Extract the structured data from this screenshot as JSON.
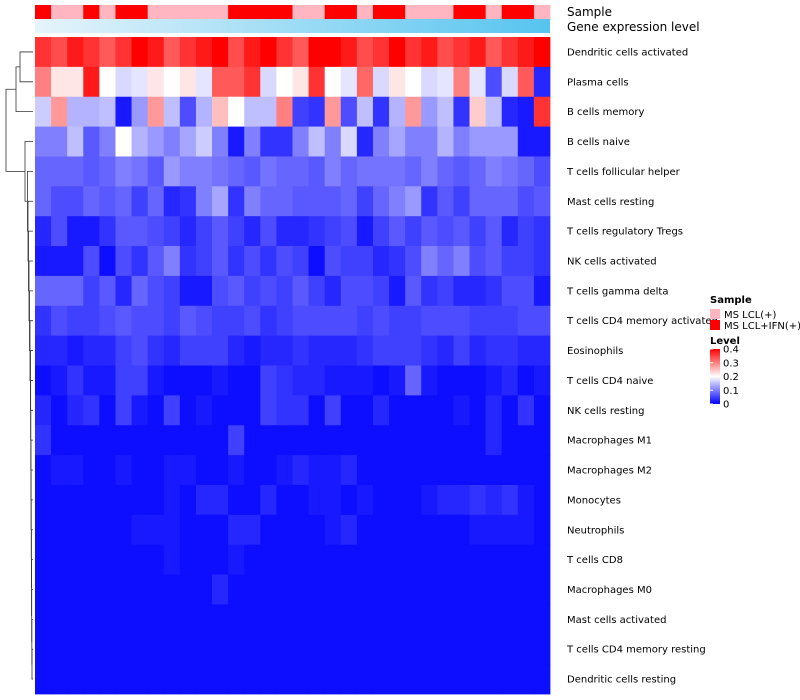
{
  "chart_data": {
    "type": "heatmap",
    "annotation_tracks": [
      "Sample",
      "Gene expression level"
    ],
    "rows": [
      "Dendritic cells activated",
      "Plasma cells",
      "B cells memory",
      "B cells naive",
      "T cells follicular helper",
      "Mast cells resting",
      "T cells regulatory  Tregs",
      "NK cells activated",
      "T cells gamma delta",
      "T cells CD4 memory activated",
      "Eosinophils",
      "T cells CD4 naive",
      "NK cells resting",
      "Macrophages M1",
      "Macrophages M2",
      "Monocytes",
      "Neutrophils",
      "T cells CD8",
      "Macrophages M0",
      "Mast cells activated",
      "T cells CD4 memory resting",
      "Dendritic cells resting"
    ],
    "sample_groups": [
      "MS LCL+IFN(+)",
      "MS LCL(+)",
      "MS LCL(+)",
      "MS LCL+IFN(+)",
      "MS LCL(+)",
      "MS LCL+IFN(+)",
      "MS LCL+IFN(+)",
      "MS LCL(+)",
      "MS LCL(+)",
      "MS LCL(+)",
      "MS LCL(+)",
      "MS LCL(+)",
      "MS LCL+IFN(+)",
      "MS LCL+IFN(+)",
      "MS LCL+IFN(+)",
      "MS LCL+IFN(+)",
      "MS LCL(+)",
      "MS LCL(+)",
      "MS LCL+IFN(+)",
      "MS LCL+IFN(+)",
      "MS LCL(+)",
      "MS LCL+IFN(+)",
      "MS LCL+IFN(+)",
      "MS LCL(+)",
      "MS LCL(+)",
      "MS LCL(+)",
      "MS LCL+IFN(+)",
      "MS LCL+IFN(+)",
      "MS LCL(+)",
      "MS LCL+IFN(+)",
      "MS LCL+IFN(+)",
      "MS LCL(+)"
    ],
    "values": [
      [
        0.36,
        0.34,
        0.38,
        0.36,
        0.33,
        0.36,
        0.4,
        0.38,
        0.33,
        0.36,
        0.38,
        0.4,
        0.34,
        0.38,
        0.4,
        0.36,
        0.33,
        0.4,
        0.4,
        0.38,
        0.34,
        0.36,
        0.4,
        0.36,
        0.38,
        0.34,
        0.36,
        0.38,
        0.33,
        0.36,
        0.38,
        0.4
      ],
      [
        0.3,
        0.22,
        0.22,
        0.38,
        0.2,
        0.17,
        0.18,
        0.22,
        0.2,
        0.22,
        0.18,
        0.33,
        0.33,
        0.36,
        0.17,
        0.2,
        0.22,
        0.36,
        0.2,
        0.18,
        0.32,
        0.17,
        0.22,
        0.2,
        0.17,
        0.18,
        0.3,
        0.18,
        0.06,
        0.17,
        0.33,
        0.03
      ],
      [
        0.16,
        0.28,
        0.14,
        0.14,
        0.15,
        0.02,
        0.12,
        0.28,
        0.15,
        0.06,
        0.14,
        0.25,
        0.2,
        0.15,
        0.15,
        0.3,
        0.05,
        0.04,
        0.28,
        0.06,
        0.15,
        0.04,
        0.14,
        0.28,
        0.12,
        0.15,
        0.04,
        0.24,
        0.15,
        0.03,
        0.02,
        0.36
      ],
      [
        0.1,
        0.1,
        0.15,
        0.07,
        0.1,
        0.2,
        0.14,
        0.12,
        0.1,
        0.13,
        0.16,
        0.1,
        0.02,
        0.1,
        0.04,
        0.04,
        0.1,
        0.15,
        0.1,
        0.17,
        0.03,
        0.1,
        0.13,
        0.1,
        0.1,
        0.14,
        0.1,
        0.12,
        0.12,
        0.12,
        0.02,
        0.02
      ],
      [
        0.08,
        0.08,
        0.08,
        0.07,
        0.08,
        0.1,
        0.09,
        0.07,
        0.12,
        0.1,
        0.1,
        0.09,
        0.08,
        0.07,
        0.09,
        0.08,
        0.08,
        0.07,
        0.1,
        0.08,
        0.09,
        0.09,
        0.09,
        0.08,
        0.1,
        0.08,
        0.07,
        0.08,
        0.1,
        0.09,
        0.08,
        0.06
      ],
      [
        0.08,
        0.06,
        0.06,
        0.08,
        0.07,
        0.08,
        0.05,
        0.08,
        0.03,
        0.04,
        0.1,
        0.13,
        0.04,
        0.1,
        0.08,
        0.08,
        0.07,
        0.07,
        0.07,
        0.08,
        0.05,
        0.08,
        0.1,
        0.12,
        0.04,
        0.07,
        0.05,
        0.08,
        0.08,
        0.08,
        0.06,
        0.07
      ],
      [
        0.03,
        0.06,
        0.02,
        0.02,
        0.04,
        0.07,
        0.07,
        0.06,
        0.05,
        0.03,
        0.05,
        0.07,
        0.05,
        0.03,
        0.06,
        0.03,
        0.03,
        0.04,
        0.05,
        0.06,
        0.02,
        0.05,
        0.07,
        0.05,
        0.07,
        0.06,
        0.07,
        0.05,
        0.07,
        0.03,
        0.05,
        0.04
      ],
      [
        0.02,
        0.02,
        0.02,
        0.06,
        0.01,
        0.06,
        0.04,
        0.07,
        0.1,
        0.04,
        0.05,
        0.07,
        0.04,
        0.06,
        0.04,
        0.06,
        0.05,
        0.01,
        0.06,
        0.05,
        0.05,
        0.03,
        0.04,
        0.06,
        0.1,
        0.08,
        0.1,
        0.06,
        0.07,
        0.05,
        0.05,
        0.04
      ],
      [
        0.08,
        0.08,
        0.08,
        0.05,
        0.07,
        0.03,
        0.08,
        0.06,
        0.05,
        0.02,
        0.02,
        0.06,
        0.07,
        0.05,
        0.06,
        0.05,
        0.07,
        0.05,
        0.03,
        0.06,
        0.06,
        0.05,
        0.02,
        0.07,
        0.04,
        0.05,
        0.03,
        0.03,
        0.04,
        0.06,
        0.06,
        0.02
      ],
      [
        0.04,
        0.06,
        0.05,
        0.05,
        0.06,
        0.07,
        0.06,
        0.06,
        0.05,
        0.07,
        0.06,
        0.05,
        0.05,
        0.06,
        0.04,
        0.05,
        0.06,
        0.06,
        0.06,
        0.06,
        0.05,
        0.06,
        0.05,
        0.05,
        0.06,
        0.06,
        0.06,
        0.05,
        0.05,
        0.05,
        0.06,
        0.06
      ],
      [
        0.03,
        0.03,
        0.02,
        0.03,
        0.03,
        0.05,
        0.06,
        0.04,
        0.03,
        0.05,
        0.05,
        0.05,
        0.03,
        0.02,
        0.03,
        0.03,
        0.04,
        0.03,
        0.03,
        0.03,
        0.04,
        0.05,
        0.05,
        0.05,
        0.04,
        0.03,
        0.05,
        0.03,
        0.04,
        0.04,
        0.03,
        0.03
      ],
      [
        0.01,
        0.02,
        0.04,
        0.02,
        0.02,
        0.05,
        0.05,
        0.02,
        0.01,
        0.01,
        0.01,
        0.02,
        0.01,
        0.01,
        0.05,
        0.04,
        0.03,
        0.03,
        0.02,
        0.02,
        0.02,
        0.01,
        0.02,
        0.08,
        0.02,
        0.01,
        0.01,
        0.01,
        0.02,
        0.03,
        0.01,
        0.02
      ],
      [
        0.03,
        0.01,
        0.03,
        0.04,
        0.01,
        0.05,
        0.02,
        0.01,
        0.05,
        0.01,
        0.02,
        0.01,
        0.01,
        0.01,
        0.05,
        0.04,
        0.04,
        0.01,
        0.05,
        0.01,
        0.01,
        0.03,
        0.01,
        0.01,
        0.01,
        0.01,
        0.02,
        0.01,
        0.03,
        0.01,
        0.04,
        0.01
      ],
      [
        0.04,
        0.01,
        0.01,
        0.01,
        0.01,
        0.01,
        0.01,
        0.01,
        0.01,
        0.01,
        0.01,
        0.01,
        0.05,
        0.01,
        0.01,
        0.01,
        0.01,
        0.01,
        0.01,
        0.01,
        0.01,
        0.01,
        0.01,
        0.01,
        0.01,
        0.01,
        0.01,
        0.01,
        0.03,
        0.01,
        0.01,
        0.01
      ],
      [
        0.01,
        0.02,
        0.02,
        0.01,
        0.01,
        0.02,
        0.01,
        0.01,
        0.02,
        0.02,
        0.01,
        0.01,
        0.02,
        0.01,
        0.01,
        0.02,
        0.03,
        0.02,
        0.02,
        0.03,
        0.01,
        0.01,
        0.01,
        0.01,
        0.01,
        0.01,
        0.01,
        0.01,
        0.01,
        0.01,
        0.01,
        0.01
      ],
      [
        0.01,
        0.01,
        0.01,
        0.01,
        0.01,
        0.01,
        0.01,
        0.01,
        0.02,
        0.01,
        0.03,
        0.03,
        0.01,
        0.01,
        0.03,
        0.01,
        0.01,
        0.02,
        0.02,
        0.01,
        0.02,
        0.01,
        0.01,
        0.01,
        0.02,
        0.03,
        0.03,
        0.04,
        0.03,
        0.04,
        0.02,
        0.01
      ],
      [
        0.01,
        0.01,
        0.01,
        0.01,
        0.01,
        0.01,
        0.02,
        0.02,
        0.02,
        0.01,
        0.01,
        0.01,
        0.03,
        0.03,
        0.01,
        0.01,
        0.01,
        0.01,
        0.02,
        0.03,
        0.01,
        0.01,
        0.01,
        0.01,
        0.01,
        0.01,
        0.01,
        0.02,
        0.02,
        0.02,
        0.02,
        0.01
      ],
      [
        0.01,
        0.01,
        0.01,
        0.01,
        0.01,
        0.01,
        0.01,
        0.01,
        0.02,
        0.01,
        0.01,
        0.01,
        0.02,
        0.01,
        0.01,
        0.01,
        0.01,
        0.01,
        0.01,
        0.01,
        0.01,
        0.01,
        0.01,
        0.01,
        0.01,
        0.01,
        0.01,
        0.01,
        0.01,
        0.01,
        0.01,
        0.01
      ],
      [
        0.01,
        0.01,
        0.01,
        0.01,
        0.01,
        0.01,
        0.01,
        0.01,
        0.01,
        0.01,
        0.01,
        0.03,
        0.01,
        0.01,
        0.01,
        0.01,
        0.01,
        0.01,
        0.01,
        0.01,
        0.01,
        0.01,
        0.01,
        0.01,
        0.01,
        0.01,
        0.01,
        0.01,
        0.01,
        0.01,
        0.01,
        0.01
      ],
      [
        0.01,
        0.01,
        0.01,
        0.01,
        0.01,
        0.01,
        0.01,
        0.01,
        0.01,
        0.01,
        0.01,
        0.01,
        0.01,
        0.01,
        0.01,
        0.01,
        0.01,
        0.01,
        0.01,
        0.01,
        0.01,
        0.01,
        0.01,
        0.01,
        0.01,
        0.01,
        0.01,
        0.01,
        0.01,
        0.01,
        0.01,
        0.01
      ],
      [
        0.01,
        0.01,
        0.01,
        0.01,
        0.01,
        0.01,
        0.01,
        0.01,
        0.01,
        0.01,
        0.01,
        0.01,
        0.01,
        0.01,
        0.01,
        0.01,
        0.01,
        0.01,
        0.01,
        0.01,
        0.01,
        0.01,
        0.01,
        0.01,
        0.01,
        0.01,
        0.01,
        0.01,
        0.01,
        0.01,
        0.01,
        0.01
      ],
      [
        0.01,
        0.01,
        0.01,
        0.01,
        0.01,
        0.01,
        0.01,
        0.01,
        0.01,
        0.01,
        0.01,
        0.01,
        0.01,
        0.01,
        0.01,
        0.01,
        0.01,
        0.01,
        0.01,
        0.01,
        0.01,
        0.01,
        0.01,
        0.01,
        0.01,
        0.01,
        0.01,
        0.01,
        0.01,
        0.01,
        0.01,
        0.01
      ]
    ],
    "sample_legend": {
      "title": "Sample",
      "entries": [
        {
          "label": "MS LCL(+)",
          "color": "#ffb6c1"
        },
        {
          "label": "MS LCL+IFN(+)",
          "color": "#ff0000"
        }
      ]
    },
    "level_legend": {
      "title": "Level",
      "range": [
        0,
        0.4
      ],
      "ticks": [
        {
          "value": 0.4,
          "label": "0.4"
        },
        {
          "value": 0.3,
          "label": "0.3"
        },
        {
          "value": 0.2,
          "label": "0.2"
        },
        {
          "value": 0.1,
          "label": "0.1"
        },
        {
          "value": 0,
          "label": "0"
        }
      ],
      "colors": [
        "#0000ff",
        "#ffffff",
        "#ff0000"
      ]
    },
    "gene_expression_gradient": [
      "#e6f4fb",
      "#56c4ef"
    ],
    "row_dendrogram": true
  }
}
